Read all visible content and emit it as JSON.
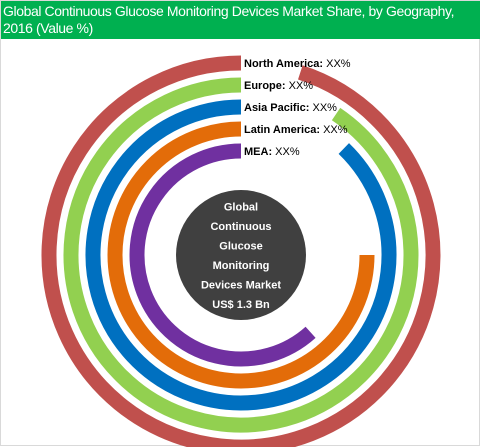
{
  "chart_data": {
    "type": "radial-bar",
    "title": "Global Continuous Glucose Monitoring Devices Market Share, by Geography, 2016 (Value %)",
    "center_label": [
      "Global",
      "Continuous",
      "Glucose",
      "Monitoring",
      "Devices Market",
      "US$ 1.3 Bn"
    ],
    "categories": [
      "North America",
      "Europe",
      "Asia Pacific",
      "Latin America",
      "MEA"
    ],
    "series": [
      {
        "name": "North America",
        "label": "North America:",
        "value_text": "XX%",
        "color": "#c0504d"
      },
      {
        "name": "Europe",
        "label": "Europe:",
        "value_text": "XX%",
        "color": "#92d050"
      },
      {
        "name": "Asia Pacific",
        "label": "Asia Pacific:",
        "value_text": "XX%",
        "color": "#0070c0"
      },
      {
        "name": "Latin America",
        "label": "Latin America:",
        "value_text": "XX%",
        "color": "#e36c09"
      },
      {
        "name": "MEA",
        "label": "MEA:",
        "value_text": "XX%",
        "color": "#7030a0"
      }
    ],
    "center_color": "#404040",
    "legend_placement": "top-center, beside bar starts"
  },
  "title_bar_color": "#00b050"
}
